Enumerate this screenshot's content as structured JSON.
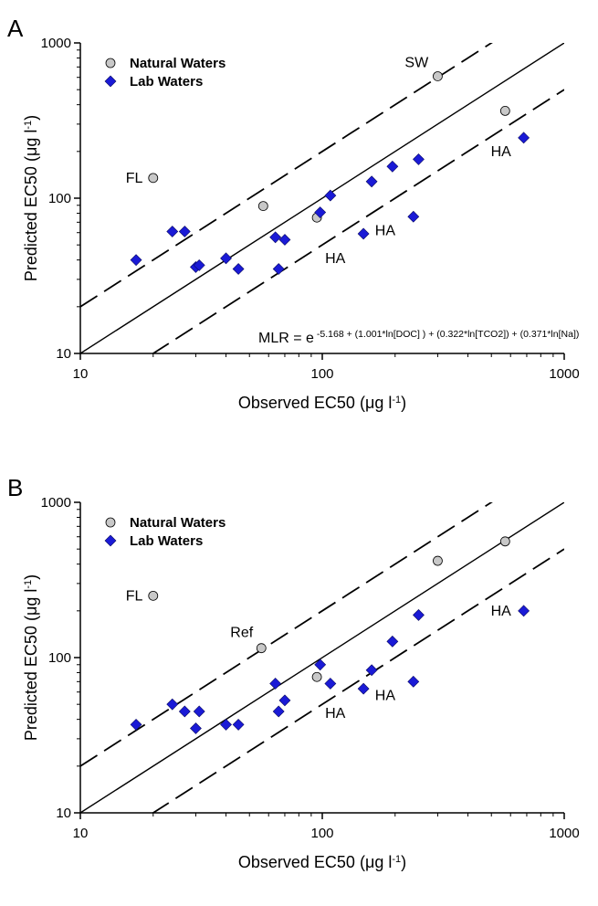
{
  "chart_data": [
    {
      "panel": "A",
      "type": "scatter",
      "xlabel_pre": "Observed EC50 (",
      "xlabel_mu": "μ",
      "xlabel_post": "g l",
      "xlabel_sup": "-1",
      "xlabel_close": ")",
      "ylabel_pre": "Predicted EC50 (",
      "ylabel_mu": "μ",
      "ylabel_post": "g l",
      "ylabel_sup": "-1",
      "ylabel_close": ")",
      "xscale": "log",
      "yscale": "log",
      "xlim": [
        10,
        1000
      ],
      "ylim": [
        10,
        1000
      ],
      "xticks": [
        "10",
        "100",
        "1000"
      ],
      "yticks": [
        "10",
        "100",
        "1000"
      ],
      "legend": [
        {
          "label": "Natural Waters",
          "marker": "circle",
          "color": "#c8c8c8"
        },
        {
          "label": "Lab Waters",
          "marker": "diamond",
          "color": "#1a1ad6"
        }
      ],
      "legend_position": "top-left",
      "series": [
        {
          "name": "Natural Waters",
          "marker": "circle",
          "points": [
            [
              20,
              135
            ],
            [
              57,
              89
            ],
            [
              95,
              75
            ],
            [
              300,
              610
            ],
            [
              570,
              365
            ]
          ]
        },
        {
          "name": "Lab Waters",
          "marker": "diamond",
          "points": [
            [
              17,
              40
            ],
            [
              24,
              61
            ],
            [
              27,
              61
            ],
            [
              30,
              36
            ],
            [
              31,
              37
            ],
            [
              40,
              41
            ],
            [
              45,
              35
            ],
            [
              64,
              56
            ],
            [
              66,
              35
            ],
            [
              70,
              54
            ],
            [
              98,
              81
            ],
            [
              108,
              104
            ],
            [
              148,
              59
            ],
            [
              160,
              128
            ],
            [
              195,
              160
            ],
            [
              238,
              76
            ],
            [
              250,
              178
            ],
            [
              680,
              245
            ]
          ]
        }
      ],
      "lines": [
        {
          "label": "1:1",
          "style": "solid"
        },
        {
          "label": "2x over",
          "style": "dashed"
        },
        {
          "label": "2x under",
          "style": "dashed"
        }
      ],
      "annotations": [
        {
          "text": "FL",
          "x": 20,
          "y": 135
        },
        {
          "text": "SW",
          "x": 300,
          "y": 610
        },
        {
          "text": "HA",
          "x": 680,
          "y": 245
        },
        {
          "text": "HA",
          "x": 238,
          "y": 76
        },
        {
          "text": "HA",
          "x": 148,
          "y": 59
        }
      ],
      "equation": {
        "base": "MLR = e",
        "exponent": "-5.168 + (1.001*ln[DOC] ) + (0.322*ln[TCO2]) + (0.371*ln[Na])"
      }
    },
    {
      "panel": "B",
      "type": "scatter",
      "xlabel_pre": "Observed EC50 (",
      "xlabel_mu": "μ",
      "xlabel_post": "g l",
      "xlabel_sup": "-1",
      "xlabel_close": ")",
      "ylabel_pre": "Predicted EC50 (",
      "ylabel_mu": "μ",
      "ylabel_post": "g l",
      "ylabel_sup": "-1",
      "ylabel_close": ")",
      "xscale": "log",
      "yscale": "log",
      "xlim": [
        10,
        1000
      ],
      "ylim": [
        10,
        1000
      ],
      "xticks": [
        "10",
        "100",
        "1000"
      ],
      "yticks": [
        "10",
        "100",
        "1000"
      ],
      "legend": [
        {
          "label": "Natural Waters",
          "marker": "circle",
          "color": "#c8c8c8"
        },
        {
          "label": "Lab Waters",
          "marker": "diamond",
          "color": "#1a1ad6"
        }
      ],
      "legend_position": "top-left",
      "series": [
        {
          "name": "Natural Waters",
          "marker": "circle",
          "points": [
            [
              20,
              250
            ],
            [
              56,
              115
            ],
            [
              95,
              75
            ],
            [
              300,
              420
            ],
            [
              570,
              560
            ]
          ]
        },
        {
          "name": "Lab Waters",
          "marker": "diamond",
          "points": [
            [
              17,
              37
            ],
            [
              24,
              50
            ],
            [
              27,
              45
            ],
            [
              30,
              35
            ],
            [
              31,
              45
            ],
            [
              40,
              37
            ],
            [
              45,
              37
            ],
            [
              64,
              68
            ],
            [
              66,
              45
            ],
            [
              70,
              53
            ],
            [
              98,
              90
            ],
            [
              108,
              68
            ],
            [
              148,
              63
            ],
            [
              160,
              83
            ],
            [
              195,
              127
            ],
            [
              238,
              70
            ],
            [
              250,
              188
            ],
            [
              680,
              200
            ]
          ]
        }
      ],
      "lines": [
        {
          "label": "1:1",
          "style": "solid"
        },
        {
          "label": "2x over",
          "style": "dashed"
        },
        {
          "label": "2x under",
          "style": "dashed"
        }
      ],
      "annotations": [
        {
          "text": "FL",
          "x": 20,
          "y": 250
        },
        {
          "text": "Ref",
          "x": 56,
          "y": 115
        },
        {
          "text": "HA",
          "x": 680,
          "y": 200
        },
        {
          "text": "HA",
          "x": 238,
          "y": 70
        },
        {
          "text": "HA",
          "x": 148,
          "y": 63
        }
      ]
    }
  ]
}
